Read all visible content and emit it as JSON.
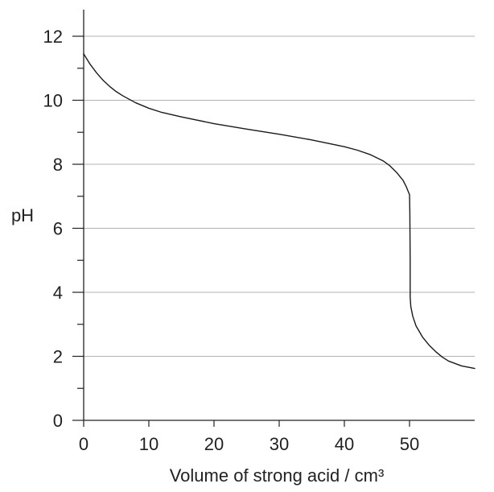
{
  "chart_data": {
    "type": "line",
    "title": "",
    "xlabel": "Volume of strong acid / cm³",
    "ylabel": "pH",
    "xlim": [
      0,
      60
    ],
    "ylim": [
      0,
      12
    ],
    "x_ticks": [
      0,
      10,
      20,
      30,
      40,
      50
    ],
    "y_ticks": [
      0,
      2,
      4,
      6,
      8,
      10,
      12
    ],
    "y_minor_step": 1,
    "grid": "horizontal at major y ticks",
    "legend": "none",
    "colors": {
      "line": "#1a1a1a",
      "axis": "#222222",
      "grid": "#b3b3b3"
    },
    "series": [
      {
        "x": [
          0,
          1,
          2,
          3,
          4,
          5,
          6,
          8,
          10,
          12,
          15,
          20,
          25,
          30,
          35,
          40,
          42,
          44,
          46,
          47,
          48,
          49,
          49.5,
          50.0,
          50.05,
          50.1,
          50.1,
          50.2,
          50.5,
          51,
          52,
          53,
          54,
          55,
          56,
          58,
          60
        ],
        "y": [
          11.45,
          11.12,
          10.85,
          10.62,
          10.43,
          10.27,
          10.14,
          9.92,
          9.75,
          9.62,
          9.48,
          9.27,
          9.1,
          8.94,
          8.76,
          8.55,
          8.44,
          8.3,
          8.1,
          7.95,
          7.75,
          7.5,
          7.3,
          7.05,
          6.5,
          5.0,
          3.85,
          3.55,
          3.25,
          2.95,
          2.6,
          2.35,
          2.15,
          1.98,
          1.85,
          1.7,
          1.62
        ]
      }
    ]
  }
}
